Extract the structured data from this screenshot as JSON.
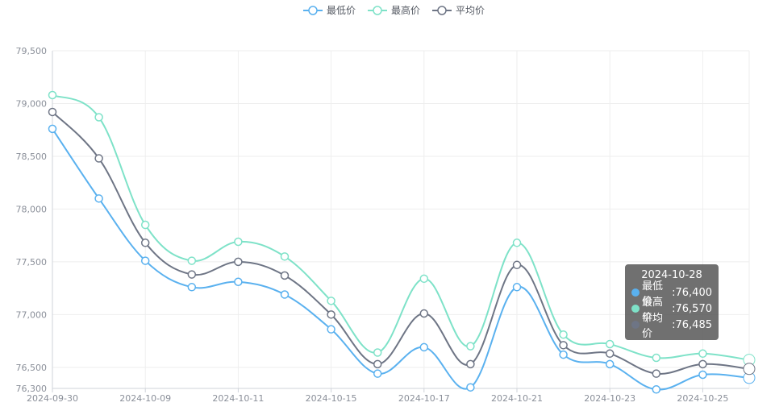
{
  "chart_data": {
    "type": "line",
    "x": [
      "2024-09-30",
      "2024-10-08",
      "2024-10-09",
      "2024-10-10",
      "2024-10-11",
      "2024-10-14",
      "2024-10-15",
      "2024-10-16",
      "2024-10-17",
      "2024-10-18",
      "2024-10-21",
      "2024-10-22",
      "2024-10-23",
      "2024-10-24",
      "2024-10-25",
      "2024-10-28"
    ],
    "x_tick_labels": [
      "2024-09-30",
      "2024-10-09",
      "2024-10-11",
      "2024-10-15",
      "2024-10-17",
      "2024-10-21",
      "2024-10-23",
      "2024-10-25"
    ],
    "ylim": [
      76300,
      79500
    ],
    "y_ticks": [
      76300,
      76500,
      77000,
      77500,
      78000,
      78500,
      79000,
      79500
    ],
    "y_tick_labels": [
      "76,300",
      "76,500",
      "77,000",
      "77,500",
      "78,000",
      "78,500",
      "79,000",
      "79,500"
    ],
    "grid": true,
    "legend_position": "top-center",
    "series": [
      {
        "name": "最低价",
        "color": "#5ab1ef",
        "values": [
          78760,
          78100,
          77510,
          77260,
          77310,
          77190,
          76860,
          76440,
          76690,
          76310,
          77260,
          76620,
          76530,
          76290,
          76430,
          76400
        ]
      },
      {
        "name": "最高价",
        "color": "#7ee2c8",
        "values": [
          79080,
          78870,
          77850,
          77510,
          77690,
          77550,
          77130,
          76640,
          77340,
          76700,
          77680,
          76810,
          76720,
          76590,
          76630,
          76570
        ]
      },
      {
        "name": "平均价",
        "color": "#6e7585",
        "values": [
          78920,
          78480,
          77680,
          77380,
          77500,
          77370,
          77000,
          76530,
          77010,
          76530,
          77470,
          76710,
          76630,
          76440,
          76530,
          76485
        ]
      }
    ],
    "tooltip": {
      "date": "2024-10-28",
      "rows": [
        {
          "label": "最低价",
          "value": "76,400",
          "color": "#5ab1ef"
        },
        {
          "label": "最高价",
          "value": "76,570",
          "color": "#7ee2c8"
        },
        {
          "label": "平均价",
          "value": "76,485",
          "color": "#6e7585"
        }
      ]
    }
  }
}
